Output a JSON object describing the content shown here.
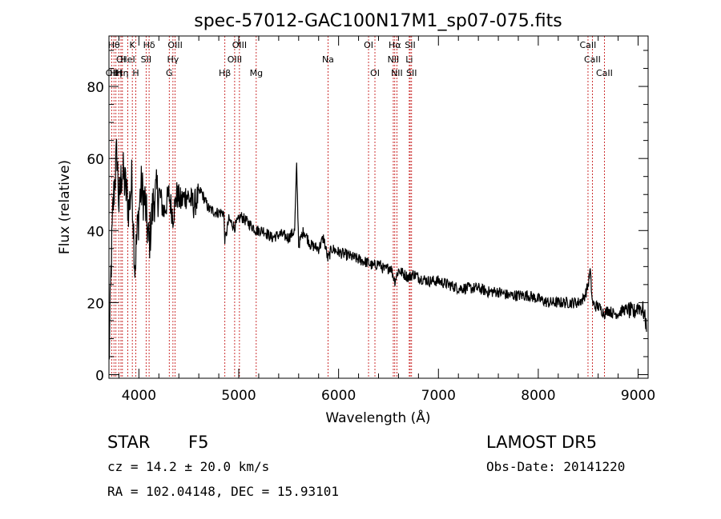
{
  "chart_data": {
    "type": "line",
    "title": "spec-57012-GAC100N17M1_sp07-075.fits",
    "xlabel": "Wavelength (Å)",
    "ylabel": "Flux (relative)",
    "xlim": [
      3700,
      9100
    ],
    "ylim": [
      -1,
      94
    ],
    "x_ticks": [
      4000,
      5000,
      6000,
      7000,
      8000,
      9000
    ],
    "y_ticks": [
      0,
      20,
      40,
      60,
      80
    ],
    "grid": false,
    "series": [
      {
        "x": [
          3700,
          3720,
          3740,
          3760,
          3780,
          3800,
          3830,
          3860,
          3900,
          3930,
          3960,
          3990,
          4020,
          4060,
          4100,
          4150,
          4200,
          4250,
          4300,
          4340,
          4380,
          4420,
          4480,
          4550,
          4620,
          4700,
          4780,
          4850,
          4861,
          4900,
          4960,
          5020,
          5100,
          5180,
          5250,
          5330,
          5420,
          5500,
          5560,
          5580,
          5600,
          5650,
          5720,
          5800,
          5850,
          5893,
          5930,
          6000,
          6100,
          6200,
          6300,
          6350,
          6400,
          6460,
          6520,
          6563,
          6600,
          6650,
          6700,
          6750,
          6800,
          6900,
          7000,
          7100,
          7200,
          7300,
          7400,
          7500,
          7600,
          7700,
          7800,
          7900,
          8000,
          8100,
          8200,
          8300,
          8400,
          8450,
          8480,
          8500,
          8520,
          8542,
          8570,
          8600,
          8662,
          8700,
          8750,
          8800,
          8850,
          8900,
          8950,
          9000,
          9050,
          9080
        ],
        "values": [
          2,
          28,
          46,
          55,
          62,
          47,
          57,
          53,
          46,
          54,
          30,
          42,
          52,
          48,
          36,
          49,
          51,
          45,
          50,
          44,
          50,
          48,
          50,
          47,
          51,
          46,
          45,
          45,
          37,
          43,
          41,
          44,
          42,
          40,
          40,
          38,
          39,
          38,
          40,
          58,
          36,
          40,
          36,
          35,
          38,
          32,
          35,
          34,
          33,
          32,
          31,
          30,
          31,
          29,
          30,
          26,
          29,
          28,
          27,
          28,
          27,
          26,
          26,
          25,
          24,
          24,
          24,
          23,
          23,
          22,
          22,
          22,
          21,
          20,
          20,
          20,
          20,
          21,
          23,
          25,
          29,
          20,
          19,
          19,
          17,
          18,
          17,
          17,
          18,
          18,
          17,
          19,
          18,
          14
        ]
      }
    ],
    "lines": [
      {
        "x": 3727,
        "label": "OII",
        "row": 3
      },
      {
        "x": 3750,
        "label": "Hθ",
        "row": 1
      },
      {
        "x": 3770,
        "label": "Hη",
        "row": 3
      },
      {
        "x": 3798,
        "label": "H",
        "row": 3
      },
      {
        "x": 3820,
        "label": "OI",
        "row": 2
      },
      {
        "x": 3835,
        "label": "Hη",
        "row": 3
      },
      {
        "x": 3889,
        "label": "HeI",
        "row": 2
      },
      {
        "x": 3934,
        "label": "K",
        "row": 1
      },
      {
        "x": 3969,
        "label": "H",
        "row": 3
      },
      {
        "x": 4072,
        "label": "SII",
        "row": 2
      },
      {
        "x": 4102,
        "label": "Hδ",
        "row": 1
      },
      {
        "x": 4304,
        "label": "G",
        "row": 3
      },
      {
        "x": 4341,
        "label": "Hγ",
        "row": 2
      },
      {
        "x": 4363,
        "label": "OIII",
        "row": 1
      },
      {
        "x": 4861,
        "label": "Hβ",
        "row": 3
      },
      {
        "x": 4959,
        "label": "OIII",
        "row": 2
      },
      {
        "x": 5007,
        "label": "OIII",
        "row": 1
      },
      {
        "x": 5175,
        "label": "Mg",
        "row": 3
      },
      {
        "x": 5894,
        "label": "Na",
        "row": 2
      },
      {
        "x": 6300,
        "label": "OI",
        "row": 1
      },
      {
        "x": 6364,
        "label": "OI",
        "row": 3
      },
      {
        "x": 6548,
        "label": "NII",
        "row": 2
      },
      {
        "x": 6563,
        "label": "Hα",
        "row": 1
      },
      {
        "x": 6584,
        "label": "NII",
        "row": 3
      },
      {
        "x": 6708,
        "label": "Li",
        "row": 2
      },
      {
        "x": 6717,
        "label": "SII",
        "row": 1
      },
      {
        "x": 6731,
        "label": "SII",
        "row": 3
      },
      {
        "x": 8498,
        "label": "CaII",
        "row": 1
      },
      {
        "x": 8542,
        "label": "CaII",
        "row": 2
      },
      {
        "x": 8662,
        "label": "CaII",
        "row": 3
      }
    ]
  },
  "info": {
    "object_class": "STAR",
    "subclass": "F5",
    "survey": "LAMOST DR5",
    "redshift": "cz = 14.2 ± 20.0 km/s",
    "obs_date": "Obs-Date: 20141220",
    "coords": "RA = 102.04148, DEC =  15.93101"
  }
}
